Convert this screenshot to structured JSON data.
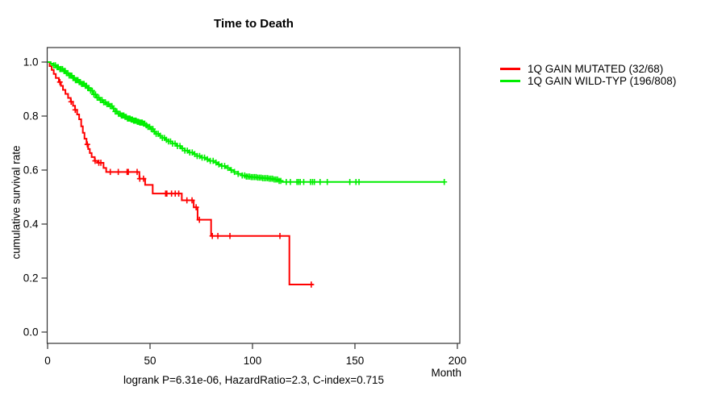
{
  "title": "Time to Death",
  "caption": "logrank P=6.31e-06, HazardRatio=2.3, C-index=0.715",
  "x_axis": {
    "label": "Month",
    "ticks": [
      0,
      50,
      100,
      150,
      200
    ],
    "range": [
      0,
      200
    ]
  },
  "y_axis": {
    "label": "cumulative survival rate",
    "ticks": [
      "0.0",
      "0.2",
      "0.4",
      "0.6",
      "0.8",
      "1.0"
    ],
    "range": [
      0,
      1
    ]
  },
  "legend": [
    {
      "label": "1Q GAIN MUTATED (32/68)",
      "color": "#ff0000"
    },
    {
      "label": "1Q GAIN WILD-TYP (196/808)",
      "color": "#00ee00"
    }
  ],
  "chart_data": {
    "type": "line",
    "subtype": "kaplan-meier-step",
    "title": "Time to Death",
    "xlabel": "Month",
    "ylabel": "cumulative survival rate",
    "xlim": [
      0,
      200
    ],
    "ylim": [
      0,
      1
    ],
    "grid": false,
    "legend_position": "right-outside",
    "stats": {
      "logrank_p": "6.31e-06",
      "hazard_ratio": "2.3",
      "c_index": "0.715"
    },
    "series": [
      {
        "name": "1Q GAIN MUTATED (32/68)",
        "color": "#ff0000",
        "events": 32,
        "total": 68,
        "end_month": 129.6,
        "steps": [
          [
            0,
            1.0
          ],
          [
            1,
            0.985
          ],
          [
            2,
            0.971
          ],
          [
            3,
            0.956
          ],
          [
            4,
            0.941
          ],
          [
            5.5,
            0.926
          ],
          [
            6.5,
            0.912
          ],
          [
            7.5,
            0.897
          ],
          [
            8.7,
            0.882
          ],
          [
            10,
            0.867
          ],
          [
            11.3,
            0.853
          ],
          [
            12.4,
            0.838
          ],
          [
            13.4,
            0.823
          ],
          [
            14.4,
            0.806
          ],
          [
            15.4,
            0.788
          ],
          [
            16.4,
            0.762
          ],
          [
            17.2,
            0.738
          ],
          [
            18,
            0.716
          ],
          [
            19,
            0.695
          ],
          [
            19.8,
            0.678
          ],
          [
            20.6,
            0.663
          ],
          [
            21.5,
            0.648
          ],
          [
            23,
            0.634
          ],
          [
            24.5,
            0.627
          ],
          [
            27.3,
            0.608
          ],
          [
            28.6,
            0.593
          ],
          [
            44.8,
            0.568
          ],
          [
            47.6,
            0.545
          ],
          [
            51.3,
            0.513
          ],
          [
            65.5,
            0.488
          ],
          [
            71.3,
            0.462
          ],
          [
            73.2,
            0.416
          ],
          [
            79.8,
            0.356
          ],
          [
            118,
            0.176
          ]
        ],
        "censor_months": [
          6,
          11.5,
          13.5,
          19.4,
          23.2,
          25,
          26,
          30.6,
          34.5,
          38.8,
          39.4,
          43.7,
          45,
          46.8,
          57.6,
          58.2,
          60.5,
          62.3,
          64,
          68,
          70.5,
          72.5,
          74.1,
          80.4,
          83.1,
          89,
          113.4,
          128.7
        ]
      },
      {
        "name": "1Q GAIN WILD-TYP (196/808)",
        "color": "#00ee00",
        "events": 196,
        "total": 808,
        "end_month": 193.6,
        "steps": [
          [
            0,
            1.0
          ],
          [
            1.5,
            0.994
          ],
          [
            3,
            0.988
          ],
          [
            4.5,
            0.981
          ],
          [
            6,
            0.974
          ],
          [
            7.5,
            0.967
          ],
          [
            9,
            0.959
          ],
          [
            10.5,
            0.95
          ],
          [
            12,
            0.941
          ],
          [
            13.5,
            0.933
          ],
          [
            15,
            0.926
          ],
          [
            16.5,
            0.919
          ],
          [
            18,
            0.912
          ],
          [
            19.5,
            0.904
          ],
          [
            21,
            0.894
          ],
          [
            22.5,
            0.88
          ],
          [
            24,
            0.868
          ],
          [
            25.5,
            0.859
          ],
          [
            27,
            0.851
          ],
          [
            28.5,
            0.844
          ],
          [
            30,
            0.837
          ],
          [
            31.5,
            0.828
          ],
          [
            33,
            0.817
          ],
          [
            34.5,
            0.808
          ],
          [
            36,
            0.802
          ],
          [
            37.5,
            0.797
          ],
          [
            39,
            0.791
          ],
          [
            40.5,
            0.787
          ],
          [
            42,
            0.783
          ],
          [
            43.5,
            0.779
          ],
          [
            45,
            0.776
          ],
          [
            46.5,
            0.772
          ],
          [
            47.5,
            0.766
          ],
          [
            48.5,
            0.76
          ],
          [
            50,
            0.752
          ],
          [
            51.5,
            0.742
          ],
          [
            53,
            0.734
          ],
          [
            54.5,
            0.727
          ],
          [
            56,
            0.719
          ],
          [
            57.5,
            0.712
          ],
          [
            59,
            0.706
          ],
          [
            61,
            0.698
          ],
          [
            63,
            0.689
          ],
          [
            65,
            0.68
          ],
          [
            67,
            0.672
          ],
          [
            69,
            0.665
          ],
          [
            71,
            0.659
          ],
          [
            73,
            0.652
          ],
          [
            75,
            0.646
          ],
          [
            77,
            0.64
          ],
          [
            79,
            0.634
          ],
          [
            81,
            0.628
          ],
          [
            83,
            0.621
          ],
          [
            85,
            0.615
          ],
          [
            87,
            0.608
          ],
          [
            89,
            0.6
          ],
          [
            91,
            0.593
          ],
          [
            93,
            0.586
          ],
          [
            95,
            0.58
          ],
          [
            97,
            0.576
          ],
          [
            99,
            0.574
          ],
          [
            102,
            0.572
          ],
          [
            105,
            0.57
          ],
          [
            108,
            0.568
          ],
          [
            110.5,
            0.565
          ],
          [
            112.5,
            0.56
          ],
          [
            114.6,
            0.556
          ]
        ],
        "censor_months": [
          3,
          3.8,
          4.6,
          5.2,
          6,
          6.6,
          7.3,
          8,
          8.6,
          9.2,
          9.9,
          10.5,
          11.2,
          11.8,
          12.4,
          13,
          13.6,
          14.2,
          14.8,
          15.4,
          16,
          16.6,
          17.2,
          17.8,
          18.4,
          19,
          19.6,
          20.2,
          21,
          21.8,
          22.6,
          23.4,
          24.2,
          25,
          25.8,
          26.6,
          27.4,
          28.2,
          29,
          29.8,
          30.6,
          31.4,
          32.2,
          33,
          33.8,
          34.6,
          35.4,
          36,
          36.6,
          37.2,
          37.8,
          38.4,
          39,
          39.6,
          40.2,
          40.8,
          41.4,
          42,
          42.6,
          43.2,
          43.8,
          44.4,
          45,
          45.6,
          46.2,
          46.8,
          47.4,
          48.2,
          49,
          49.8,
          50.6,
          51.4,
          52.2,
          53,
          54,
          55,
          56,
          57,
          58,
          59,
          60,
          61,
          62.2,
          63.4,
          64.6,
          65.8,
          67,
          68.2,
          69.4,
          70.6,
          71.8,
          73,
          74.2,
          75.4,
          76.6,
          78,
          79.4,
          80.8,
          82.2,
          83.6,
          85,
          86.4,
          88,
          89.6,
          91.2,
          93,
          95,
          96.2,
          97,
          97.8,
          98.6,
          99.4,
          100.2,
          101,
          101.8,
          102.6,
          103.4,
          104.2,
          105,
          105.8,
          106.6,
          107.4,
          108.2,
          109,
          109.8,
          110.6,
          111.4,
          112.2,
          113,
          113.8,
          116.5,
          118.5,
          121.7,
          122.5,
          123.3,
          125,
          128.3,
          129.3,
          130.2,
          133,
          136.5,
          147.5,
          150.5,
          152,
          193.6
        ]
      }
    ]
  }
}
